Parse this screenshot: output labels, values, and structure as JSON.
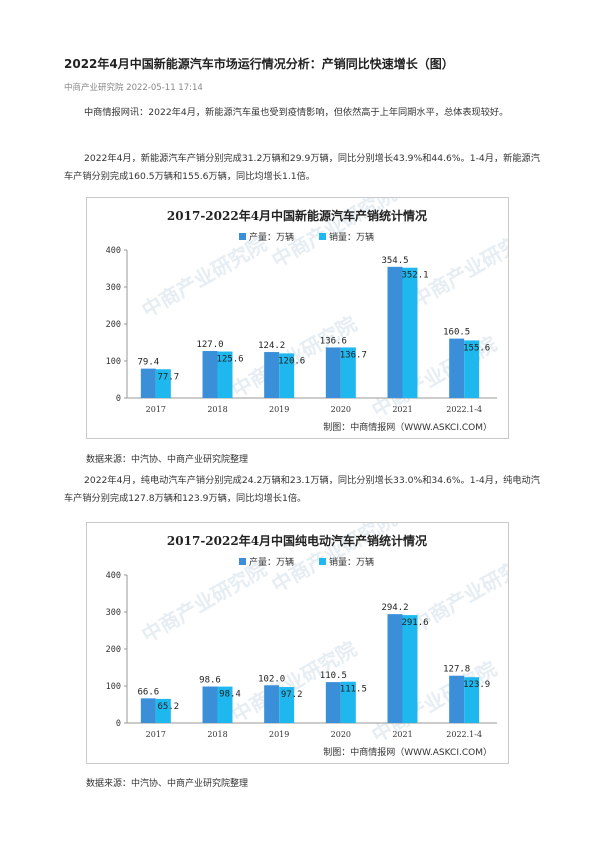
{
  "article": {
    "title": "2022年4月中国新能源汽车市场运行情况分析：产销同比快速增长（图）",
    "meta": "中商产业研究院 2022-05-11 17:14",
    "para1": "中商情报网讯：2022年4月，新能源汽车虽也受到疫情影响，但依然高于上年同期水平，总体表现较好。",
    "para2": "2022年4月，新能源汽车产销分别完成31.2万辆和29.9万辆，同比分别增长43.9%和44.6%。1-4月，新能源汽车产销分别完成160.5万辆和155.6万辆，同比均增长1.1倍。",
    "para3": "2022年4月，纯电动汽车产销分别完成24.2万辆和23.1万辆，同比分别增长33.0%和34.6%。1-4月，纯电动汽车产销分别完成127.8万辆和123.9万辆，同比均增长1倍。",
    "source1": "数据来源：中汽协、中商产业研究院整理",
    "source2": "数据来源：中汽协、中商产业研究院整理"
  },
  "colors": {
    "production": "#3b8fd9",
    "sales": "#1fb8ee",
    "axis": "#999999",
    "title": "#222222"
  },
  "watermark": "中商产业研究院",
  "chart_data": [
    {
      "type": "bar",
      "title": "2017-2022年4月中国新能源汽车产销统计情况",
      "categories": [
        "2017",
        "2018",
        "2019",
        "2020",
        "2021",
        "2022.1-4"
      ],
      "series": [
        {
          "name": "产量：万辆",
          "values": [
            79.4,
            127.0,
            124.2,
            136.6,
            354.5,
            160.5
          ]
        },
        {
          "name": "销量：万辆",
          "values": [
            77.7,
            125.6,
            120.6,
            136.7,
            352.1,
            155.6
          ]
        }
      ],
      "value_labels": [
        [
          "79.4",
          "127.0",
          "124.2",
          "136.6",
          "354.5",
          "160.5"
        ],
        [
          "77.7",
          "125.6",
          "120.6",
          "136.7",
          "352.1",
          "155.6"
        ]
      ],
      "ylim": [
        0,
        400
      ],
      "yticks": [
        0,
        100,
        200,
        300,
        400
      ],
      "legend": "top-center",
      "grid": false,
      "credit": "制图：中商情报网（WWW.ASKCI.COM）"
    },
    {
      "type": "bar",
      "title": "2017-2022年4月中国纯电动汽车产销统计情况",
      "categories": [
        "2017",
        "2018",
        "2019",
        "2020",
        "2021",
        "2022.1-4"
      ],
      "series": [
        {
          "name": "产量：万辆",
          "values": [
            66.6,
            98.6,
            102.0,
            110.5,
            294.2,
            127.8
          ]
        },
        {
          "name": "销量：万辆",
          "values": [
            65.2,
            98.4,
            97.2,
            111.5,
            291.6,
            123.9
          ]
        }
      ],
      "value_labels": [
        [
          "66.6",
          "98.6",
          "102.0",
          "110.5",
          "294.2",
          "127.8"
        ],
        [
          "65.2",
          "98.4",
          "97.2",
          "111.5",
          "291.6",
          "123.9"
        ]
      ],
      "ylim": [
        0,
        400
      ],
      "yticks": [
        0,
        100,
        200,
        300,
        400
      ],
      "legend": "top-center",
      "grid": false,
      "credit": "制图：中商情报网（WWW.ASKCI.COM）"
    }
  ]
}
